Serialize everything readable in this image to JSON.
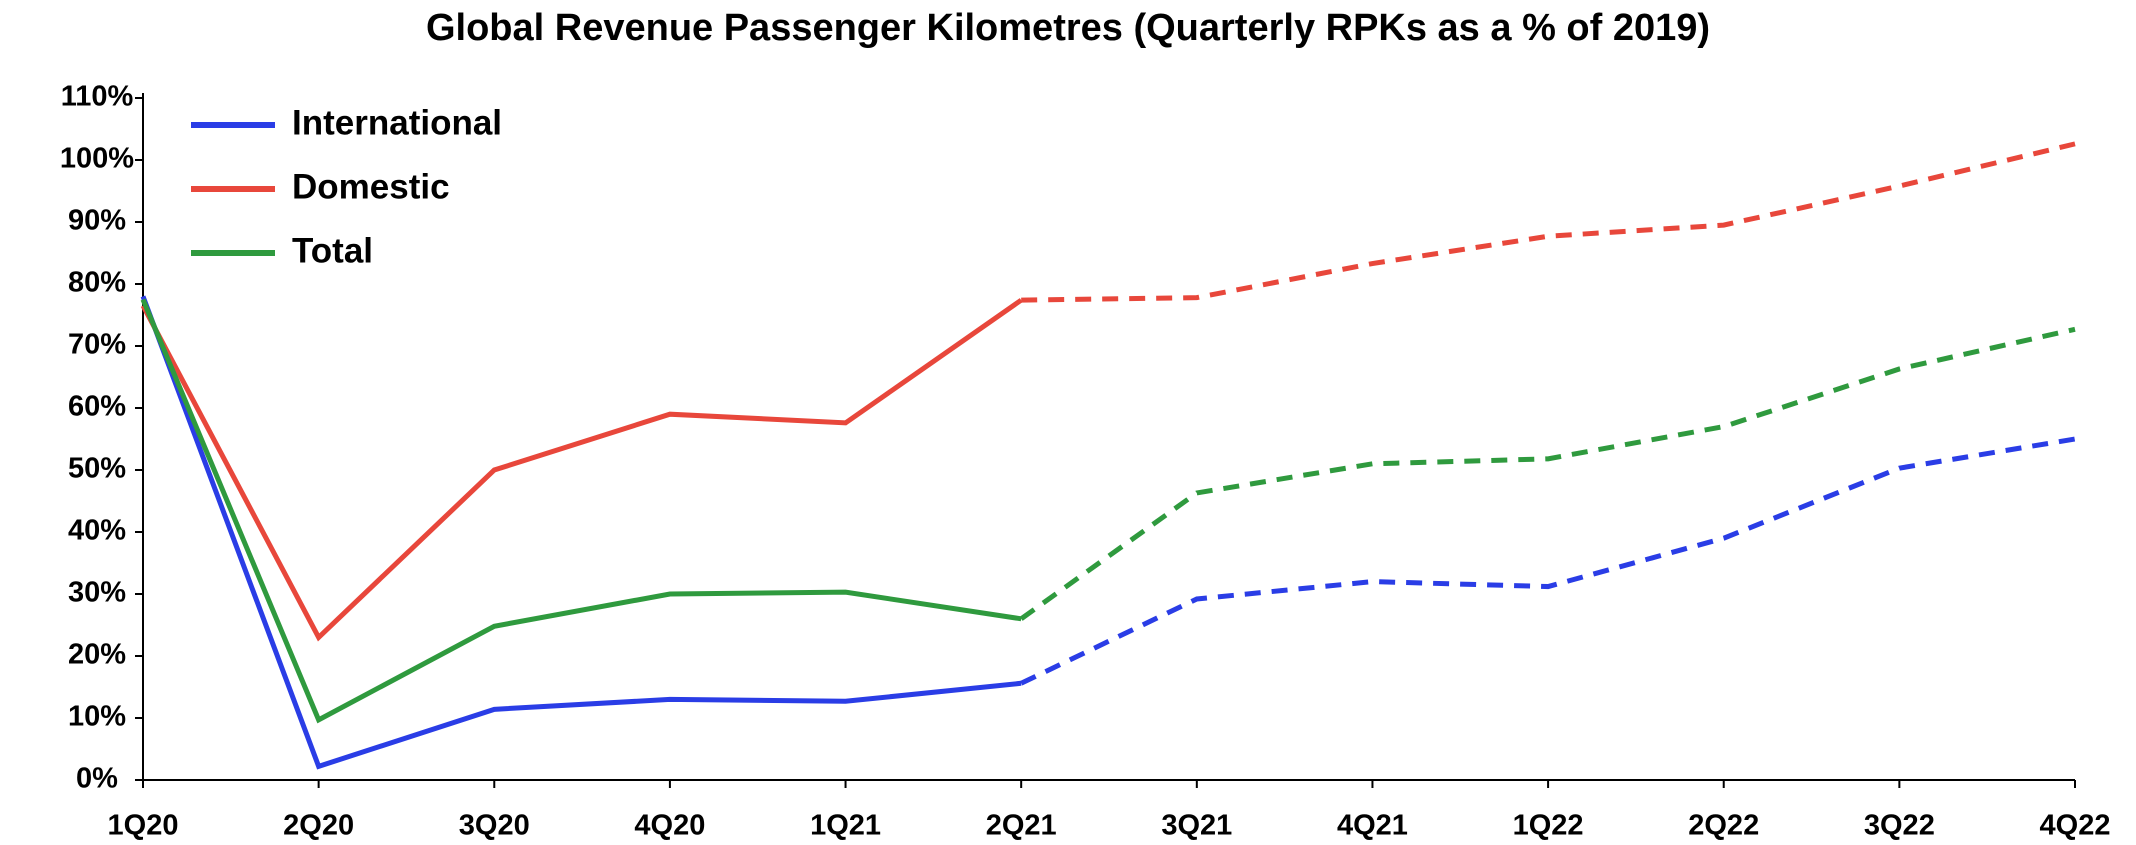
{
  "chart_data": {
    "type": "line",
    "title": "Global Revenue Passenger Kilometres (Quarterly RPKs as a % of 2019)",
    "categories": [
      "1Q20",
      "2Q20",
      "3Q20",
      "4Q20",
      "1Q21",
      "2Q21",
      "3Q21",
      "4Q21",
      "1Q22",
      "2Q22",
      "3Q22",
      "4Q22"
    ],
    "series": [
      {
        "name": "International",
        "color": "#2a3de6",
        "values": [
          78,
          2.2,
          11.4,
          13,
          12.7,
          15.6,
          29.2,
          32,
          31.2,
          39,
          50.3,
          55
        ]
      },
      {
        "name": "Domestic",
        "color": "#e8473b",
        "values": [
          76.5,
          23,
          50,
          59,
          57.6,
          77.4,
          77.8,
          83.3,
          87.7,
          89.5,
          95.8,
          102.6
        ]
      },
      {
        "name": "Total",
        "color": "#2f9a3e",
        "values": [
          77.5,
          9.7,
          24.8,
          30,
          30.3,
          26,
          46.3,
          51,
          51.8,
          57,
          66.3,
          72.7
        ]
      }
    ],
    "dashed_from": 5,
    "ylim": [
      0,
      110
    ],
    "yticks": [
      {
        "value": 0,
        "label": "0%"
      },
      {
        "value": 10,
        "label": "10%"
      },
      {
        "value": 20,
        "label": "20%"
      },
      {
        "value": 30,
        "label": "30%"
      },
      {
        "value": 40,
        "label": "40%"
      },
      {
        "value": 50,
        "label": "50%"
      },
      {
        "value": 60,
        "label": "60%"
      },
      {
        "value": 70,
        "label": "70%"
      },
      {
        "value": 80,
        "label": "80%"
      },
      {
        "value": 90,
        "label": "90%"
      },
      {
        "value": 100,
        "label": "100%"
      },
      {
        "value": 110,
        "label": "110%"
      }
    ],
    "legend": "upper left"
  }
}
